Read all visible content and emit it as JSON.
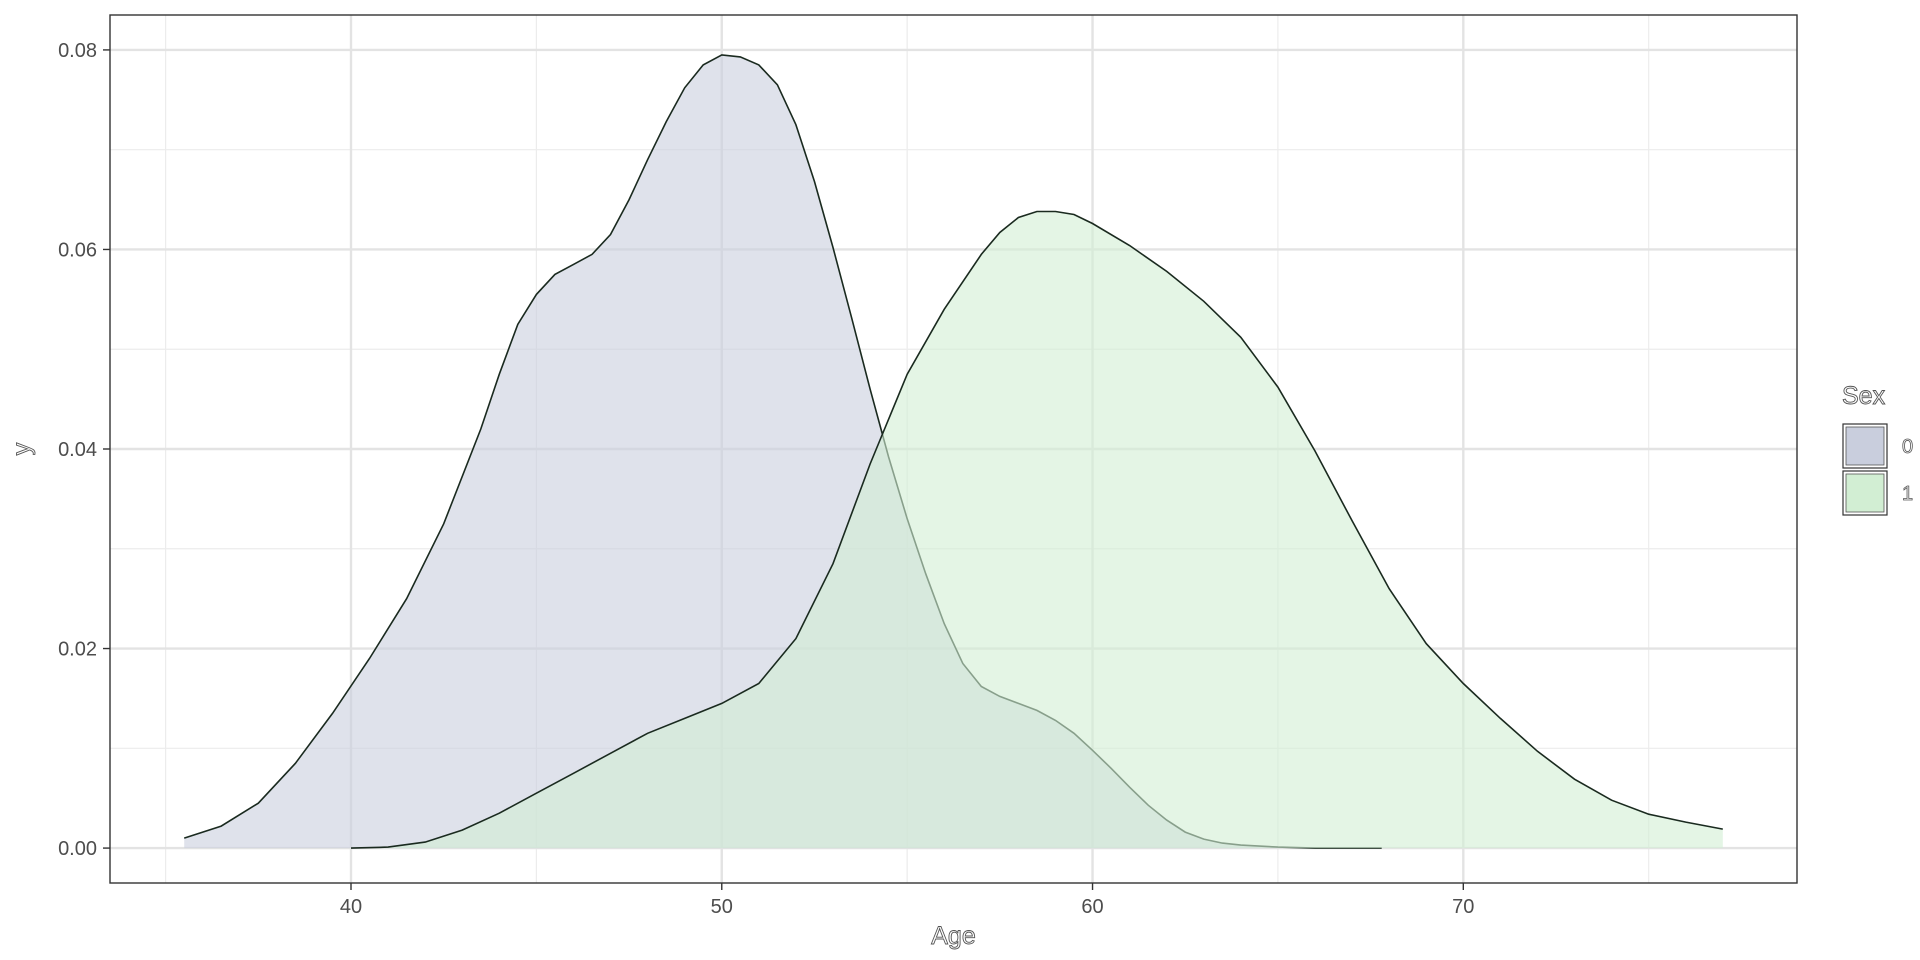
{
  "chart_data": {
    "type": "area",
    "subtype": "density",
    "xlabel": "Age",
    "ylabel": "y",
    "xlim": [
      33.5,
      79
    ],
    "ylim": [
      -0.0035,
      0.0835
    ],
    "x_ticks": [
      40,
      50,
      60,
      70
    ],
    "x_tick_labels": [
      "40",
      "50",
      "60",
      "70"
    ],
    "y_ticks": [
      0,
      0.02,
      0.04,
      0.06,
      0.08
    ],
    "y_tick_labels": [
      "0.00",
      "0.02",
      "0.04",
      "0.06",
      "0.08"
    ],
    "grid": true,
    "legend": {
      "title": "Sex",
      "position": "right"
    },
    "series": [
      {
        "name": "0",
        "fill": "#c9cedd",
        "x": [
          35.5,
          36.5,
          37.5,
          38.5,
          39.5,
          40.5,
          41.5,
          42.5,
          43.5,
          44,
          44.5,
          45,
          45.5,
          46,
          46.5,
          47,
          47.5,
          48,
          48.5,
          49,
          49.5,
          50,
          50.5,
          51,
          51.5,
          52,
          52.5,
          53,
          53.5,
          54,
          54.5,
          55,
          55.5,
          56,
          56.5,
          57,
          57.5,
          58,
          58.5,
          59,
          59.5,
          60,
          60.5,
          61,
          61.5,
          62,
          62.5,
          63,
          63.5,
          64,
          64.5,
          65,
          66,
          67,
          67.8
        ],
        "y": [
          0.001,
          0.0022,
          0.0045,
          0.0085,
          0.0135,
          0.019,
          0.025,
          0.0325,
          0.042,
          0.0475,
          0.0525,
          0.0555,
          0.0575,
          0.0585,
          0.0595,
          0.0615,
          0.065,
          0.069,
          0.0728,
          0.0762,
          0.0785,
          0.0795,
          0.0793,
          0.0785,
          0.0765,
          0.0725,
          0.0668,
          0.0602,
          0.0532,
          0.046,
          0.0392,
          0.033,
          0.0275,
          0.0225,
          0.0185,
          0.0162,
          0.0152,
          0.0145,
          0.0138,
          0.0128,
          0.0115,
          0.0098,
          0.008,
          0.0061,
          0.0043,
          0.0028,
          0.0016,
          0.0009,
          0.0005,
          0.0003,
          0.0002,
          0.0001,
          0,
          0,
          0
        ]
      },
      {
        "name": "1",
        "fill": "#d2eed3",
        "x": [
          40,
          41,
          42,
          43,
          44,
          45,
          46,
          47,
          48,
          49,
          50,
          51,
          52,
          53,
          54,
          55,
          56,
          57,
          57.5,
          58,
          58.5,
          59,
          59.5,
          60,
          61,
          62,
          63,
          64,
          65,
          66,
          67,
          68,
          69,
          70,
          71,
          72,
          73,
          74,
          75,
          76,
          77
        ],
        "y": [
          0,
          0.0001,
          0.0006,
          0.0018,
          0.0035,
          0.0055,
          0.0075,
          0.0095,
          0.0115,
          0.013,
          0.0145,
          0.0165,
          0.021,
          0.0285,
          0.0385,
          0.0475,
          0.054,
          0.0595,
          0.0617,
          0.0632,
          0.0638,
          0.0638,
          0.0635,
          0.0626,
          0.0604,
          0.0578,
          0.0548,
          0.0512,
          0.0462,
          0.0398,
          0.0328,
          0.026,
          0.0205,
          0.0165,
          0.013,
          0.0097,
          0.0069,
          0.0048,
          0.0034,
          0.0026,
          0.0019
        ]
      }
    ]
  }
}
